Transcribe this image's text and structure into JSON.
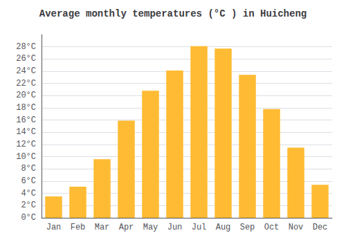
{
  "chart_data": {
    "type": "bar",
    "title": "Average monthly temperatures (°C ) in Huicheng",
    "categories": [
      "Jan",
      "Feb",
      "Mar",
      "Apr",
      "May",
      "Jun",
      "Jul",
      "Aug",
      "Sep",
      "Oct",
      "Nov",
      "Dec"
    ],
    "values": [
      3.5,
      5.1,
      9.6,
      15.9,
      20.8,
      24.1,
      28.1,
      27.7,
      23.4,
      17.8,
      11.5,
      5.4
    ],
    "color": "#FFBB33",
    "ylim": [
      0,
      30
    ],
    "yticks": [
      {
        "value": 0,
        "label": "0°C"
      },
      {
        "value": 2,
        "label": "2°C"
      },
      {
        "value": 4,
        "label": "4°C"
      },
      {
        "value": 6,
        "label": "6°C"
      },
      {
        "value": 8,
        "label": "8°C"
      },
      {
        "value": 10,
        "label": "10°C"
      },
      {
        "value": 12,
        "label": "12°C"
      },
      {
        "value": 14,
        "label": "14°C"
      },
      {
        "value": 16,
        "label": "16°C"
      },
      {
        "value": 18,
        "label": "18°C"
      },
      {
        "value": 20,
        "label": "20°C"
      },
      {
        "value": 22,
        "label": "22°C"
      },
      {
        "value": 24,
        "label": "24°C"
      },
      {
        "value": 26,
        "label": "26°C"
      },
      {
        "value": 28,
        "label": "28°C"
      }
    ],
    "grid": true
  }
}
